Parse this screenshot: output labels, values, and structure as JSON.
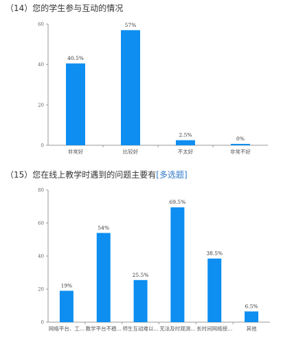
{
  "questions": [
    {
      "prefix": "（14）",
      "text": "您的学生参与互动的情况",
      "tag": ""
    },
    {
      "prefix": "（15）",
      "text": "您在线上教学时遇到的问题主要有",
      "tag": "[多选题]"
    }
  ],
  "chart_data": [
    {
      "type": "bar",
      "categories": [
        "非常好",
        "比较好",
        "不太好",
        "非常不好"
      ],
      "values": [
        40.5,
        57,
        2.5,
        0
      ],
      "data_labels": [
        "40.5%",
        "57%",
        "2.5%",
        "0%"
      ],
      "ylim": [
        0,
        60
      ],
      "yticks": [
        0,
        20,
        40,
        60
      ],
      "ytick_labels": [
        "0",
        "20",
        "40",
        "60"
      ],
      "bar_color": "#0d8ef0",
      "grid": false
    },
    {
      "type": "bar",
      "categories": [
        "网络平台、工...",
        "教学平台不稳...",
        "师生互动难以...",
        "无法及时观测...",
        "长时间网络授...",
        "其他"
      ],
      "values": [
        19,
        54,
        25.5,
        69.5,
        38.5,
        6.5
      ],
      "data_labels": [
        "19%",
        "54%",
        "25.5%",
        "69.5%",
        "38.5%",
        "6.5%"
      ],
      "ylim": [
        0,
        80
      ],
      "yticks": [
        0,
        20,
        40,
        60,
        80
      ],
      "ytick_labels": [
        "0",
        "20",
        "40",
        "60",
        "80"
      ],
      "bar_color": "#0d8ef0",
      "grid": false
    }
  ]
}
